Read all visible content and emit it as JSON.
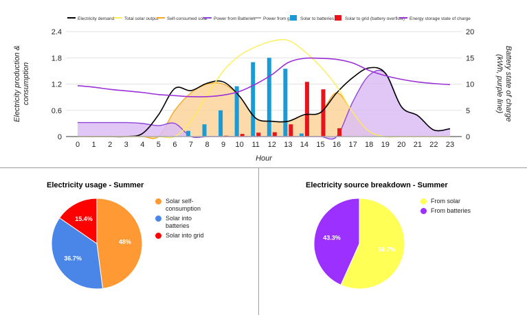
{
  "chart_data": [
    {
      "type": "line",
      "title": "",
      "xlabel": "Hour",
      "ylabel": "Electricity production & consumption",
      "y2label": "Battery state of charge (kWh, purple line)",
      "x": [
        0,
        1,
        2,
        3,
        4,
        5,
        6,
        7,
        8,
        9,
        10,
        11,
        12,
        13,
        14,
        15,
        16,
        17,
        18,
        19,
        20,
        21,
        22,
        23
      ],
      "x_tick_labels": [
        "0",
        "1",
        "2",
        "3",
        "4",
        "5",
        "6",
        "7",
        "8",
        "9",
        "10",
        "11",
        "12",
        "13",
        "14",
        "15",
        "16",
        "17",
        "18",
        "19",
        "20",
        "21",
        "22",
        "23"
      ],
      "ylim": [
        0,
        2.4
      ],
      "y_ticks": [
        0,
        0.6,
        1.2,
        1.8,
        2.4
      ],
      "y_tick_labels": [
        "0",
        "0.6",
        "1.2",
        "1.8",
        "2.4"
      ],
      "y2lim": [
        0,
        20
      ],
      "y2_ticks": [
        0,
        5,
        10,
        15,
        20
      ],
      "y2_tick_labels": [
        "0",
        "5",
        "10",
        "15",
        "20"
      ],
      "grid": "horizontal",
      "legend_position": "top",
      "series": [
        {
          "name": "Electricity demand",
          "kind": "line",
          "color": "#000000",
          "values": [
            0,
            0,
            0,
            0,
            0.07,
            0.5,
            1.1,
            1.05,
            1.22,
            1.25,
            0.92,
            0.42,
            0.35,
            0.35,
            0.5,
            0.55,
            1.0,
            1.35,
            1.57,
            1.45,
            0.68,
            0.48,
            0.15,
            0.18
          ]
        },
        {
          "name": "Total solar output",
          "kind": "line",
          "color": "#ffee55",
          "values": [
            0,
            0,
            0,
            0,
            0,
            0,
            0,
            0.35,
            0.95,
            1.5,
            1.85,
            2.05,
            2.18,
            2.2,
            1.95,
            1.6,
            1.15,
            0.55,
            0.12,
            0,
            0,
            0,
            0,
            0
          ]
        },
        {
          "name": "Self-consumed solar",
          "kind": "area",
          "color": "#f5a623",
          "fill": "#fbd39b",
          "values": [
            0,
            0,
            0,
            0,
            0,
            0,
            0.6,
            1.0,
            1.2,
            1.2,
            0.92,
            0.42,
            0.35,
            0.35,
            0.5,
            0.55,
            1.0,
            0.55,
            0.12,
            0,
            0,
            0,
            0,
            0
          ]
        },
        {
          "name": "Power from Batteries",
          "kind": "area",
          "color": "#8e44d9",
          "fill": "#dcbdf5",
          "values": [
            0.32,
            0.32,
            0.32,
            0.32,
            0.3,
            0.25,
            0.3,
            0,
            0,
            0,
            0,
            0,
            0,
            0,
            0,
            0,
            0,
            0.8,
            1.4,
            1.45,
            0.68,
            0.48,
            0.15,
            0.18
          ]
        },
        {
          "name": "Power from grid",
          "kind": "line",
          "color": "#aaaaaa",
          "values": [
            0,
            0,
            0,
            0,
            0,
            0,
            0,
            0,
            0,
            0,
            0,
            0,
            0,
            0,
            0,
            0,
            0,
            0,
            0,
            0,
            0,
            0,
            0,
            0
          ]
        },
        {
          "name": "Solar to batteries",
          "kind": "bar",
          "color": "#1a9bd7",
          "values": [
            0,
            0,
            0,
            0,
            0,
            0,
            0,
            0.13,
            0.28,
            0.6,
            1.15,
            1.7,
            1.8,
            1.55,
            0.07,
            0,
            0,
            0,
            0,
            0,
            0,
            0,
            0,
            0
          ]
        },
        {
          "name": "Solar to grid (battery overflow)",
          "kind": "bar",
          "color": "#e8141c",
          "values": [
            0,
            0,
            0,
            0,
            0,
            0,
            0,
            0,
            0,
            0.02,
            0.06,
            0.09,
            0.1,
            0.28,
            1.25,
            1.08,
            0.19,
            0,
            0,
            0,
            0,
            0,
            0,
            0
          ]
        },
        {
          "name": "Energy storage state of charge",
          "kind": "line",
          "axis": "right",
          "color": "#9b30d9",
          "values": [
            9.7,
            9.4,
            9.0,
            8.7,
            8.4,
            8.0,
            7.8,
            7.6,
            7.6,
            7.9,
            8.6,
            10.0,
            11.8,
            14.1,
            14.9,
            14.9,
            14.7,
            14.0,
            12.6,
            11.6,
            10.9,
            10.4,
            10.1,
            9.9
          ]
        }
      ]
    },
    {
      "type": "pie",
      "title": "Electricity usage - Summer",
      "legend_position": "right",
      "slices": [
        {
          "name": "Solar self-consumption",
          "value": 48,
          "label": "48%",
          "color": "#ff9933"
        },
        {
          "name": "Solar into batteries",
          "value": 36.7,
          "label": "36.7%",
          "color": "#4a86e8"
        },
        {
          "name": "Solar into grid",
          "value": 15.4,
          "label": "15.4%",
          "color": "#ff0000"
        }
      ]
    },
    {
      "type": "pie",
      "title": "Electricity source breakdown - Summer",
      "legend_position": "right",
      "slices": [
        {
          "name": "From solar",
          "value": 56.7,
          "label": "56.7%",
          "color": "#ffff55"
        },
        {
          "name": "From batteries",
          "value": 43.3,
          "label": "43.3%",
          "color": "#9b30ff"
        }
      ]
    }
  ]
}
